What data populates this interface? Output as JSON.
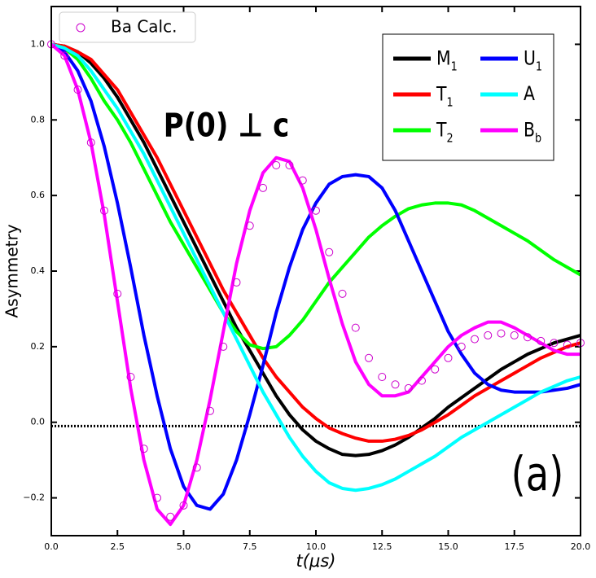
{
  "chart_data": {
    "type": "line",
    "xlabel": "t(μs)",
    "ylabel": "Asymmetry",
    "annotations": [
      "P(0) ⊥ c",
      "(a)"
    ],
    "xlim": [
      0,
      20
    ],
    "ylim": [
      -0.3,
      1.1
    ],
    "xticks": [
      {
        "value": 0,
        "label": "0.0"
      },
      2.5,
      {
        "value": 5,
        "label": "5.0"
      },
      7.5,
      {
        "value": 10,
        "label": "10.0"
      },
      12.5,
      {
        "value": 15,
        "label": "15.0"
      },
      17.5,
      {
        "value": 20,
        "label": "20.0"
      }
    ],
    "yticks": [
      {
        "value": -0.2,
        "label": "−0.2"
      },
      {
        "value": 0,
        "label": "0.0"
      },
      0.2,
      0.4,
      0.6,
      0.8,
      {
        "value": 1,
        "label": "1.0"
      }
    ],
    "hline": -0.01,
    "x": [
      0,
      0.5,
      1,
      1.5,
      2,
      2.5,
      3,
      3.5,
      4,
      4.5,
      5,
      5.5,
      6,
      6.5,
      7,
      7.5,
      8,
      8.5,
      9,
      9.5,
      10,
      10.5,
      11,
      11.5,
      12,
      12.5,
      13,
      13.5,
      14,
      14.5,
      15,
      15.5,
      16,
      16.5,
      17,
      17.5,
      18,
      18.5,
      19,
      19.5,
      20
    ],
    "series": [
      {
        "name": "M1",
        "color": "#000000",
        "style": "line",
        "values": [
          1,
          0.995,
          0.98,
          0.95,
          0.91,
          0.86,
          0.8,
          0.74,
          0.67,
          0.6,
          0.53,
          0.46,
          0.39,
          0.32,
          0.25,
          0.19,
          0.13,
          0.07,
          0.02,
          -0.02,
          -0.05,
          -0.07,
          -0.085,
          -0.088,
          -0.085,
          -0.075,
          -0.06,
          -0.04,
          -0.015,
          0.01,
          0.04,
          0.065,
          0.09,
          0.115,
          0.14,
          0.16,
          0.18,
          0.195,
          0.21,
          0.22,
          0.23
        ]
      },
      {
        "name": "T1",
        "color": "#ff0000",
        "style": "line",
        "values": [
          1,
          0.995,
          0.98,
          0.96,
          0.92,
          0.88,
          0.82,
          0.76,
          0.7,
          0.63,
          0.56,
          0.49,
          0.42,
          0.35,
          0.29,
          0.23,
          0.17,
          0.12,
          0.08,
          0.04,
          0.01,
          -0.015,
          -0.03,
          -0.042,
          -0.05,
          -0.05,
          -0.045,
          -0.035,
          -0.02,
          0,
          0.02,
          0.045,
          0.07,
          0.09,
          0.11,
          0.13,
          0.15,
          0.17,
          0.185,
          0.2,
          0.21
        ]
      },
      {
        "name": "T2",
        "color": "#00ff00",
        "style": "line",
        "values": [
          1,
          0.99,
          0.96,
          0.91,
          0.85,
          0.8,
          0.74,
          0.67,
          0.6,
          0.53,
          0.47,
          0.41,
          0.35,
          0.29,
          0.24,
          0.205,
          0.195,
          0.2,
          0.23,
          0.27,
          0.32,
          0.37,
          0.41,
          0.45,
          0.49,
          0.52,
          0.545,
          0.565,
          0.575,
          0.58,
          0.58,
          0.575,
          0.56,
          0.54,
          0.52,
          0.5,
          0.48,
          0.455,
          0.43,
          0.41,
          0.39
        ]
      },
      {
        "name": "U1",
        "color": "#0000ff",
        "style": "line",
        "values": [
          1,
          0.98,
          0.93,
          0.85,
          0.73,
          0.58,
          0.41,
          0.23,
          0.07,
          -0.07,
          -0.17,
          -0.22,
          -0.23,
          -0.19,
          -0.1,
          0.02,
          0.15,
          0.29,
          0.41,
          0.51,
          0.58,
          0.63,
          0.65,
          0.655,
          0.65,
          0.62,
          0.56,
          0.48,
          0.4,
          0.32,
          0.24,
          0.18,
          0.13,
          0.1,
          0.085,
          0.08,
          0.08,
          0.08,
          0.085,
          0.09,
          0.1
        ]
      },
      {
        "name": "A",
        "color": "#00ffff",
        "style": "line",
        "values": [
          1,
          0.99,
          0.97,
          0.93,
          0.88,
          0.83,
          0.77,
          0.71,
          0.64,
          0.57,
          0.5,
          0.43,
          0.36,
          0.29,
          0.22,
          0.15,
          0.08,
          0.02,
          -0.04,
          -0.09,
          -0.13,
          -0.16,
          -0.175,
          -0.18,
          -0.175,
          -0.165,
          -0.15,
          -0.13,
          -0.11,
          -0.09,
          -0.065,
          -0.04,
          -0.02,
          0,
          0.02,
          0.04,
          0.06,
          0.08,
          0.095,
          0.11,
          0.12
        ]
      },
      {
        "name": "Bb",
        "color": "#ff00ff",
        "style": "line",
        "values": [
          1,
          0.97,
          0.88,
          0.74,
          0.55,
          0.32,
          0.09,
          -0.1,
          -0.23,
          -0.27,
          -0.22,
          -0.1,
          0.06,
          0.24,
          0.42,
          0.56,
          0.66,
          0.7,
          0.69,
          0.62,
          0.51,
          0.38,
          0.26,
          0.16,
          0.1,
          0.07,
          0.07,
          0.08,
          0.12,
          0.16,
          0.2,
          0.23,
          0.25,
          0.265,
          0.265,
          0.25,
          0.23,
          0.21,
          0.19,
          0.18,
          0.18
        ]
      },
      {
        "name": "Ba Calc.",
        "color": "#cc00cc",
        "style": "markers",
        "values": [
          1,
          0.97,
          0.88,
          0.74,
          0.56,
          0.34,
          0.12,
          -0.07,
          -0.2,
          -0.25,
          -0.22,
          -0.12,
          0.03,
          0.2,
          0.37,
          0.52,
          0.62,
          0.68,
          0.68,
          0.64,
          0.56,
          0.45,
          0.34,
          0.25,
          0.17,
          0.12,
          0.1,
          0.09,
          0.11,
          0.14,
          0.17,
          0.2,
          0.22,
          0.23,
          0.235,
          0.23,
          0.225,
          0.215,
          0.21,
          0.205,
          0.21
        ]
      }
    ]
  }
}
